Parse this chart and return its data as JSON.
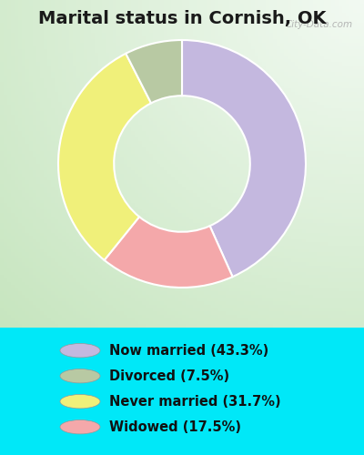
{
  "title": "Marital status in Cornish, OK",
  "values": [
    43.3,
    17.5,
    31.7,
    7.5
  ],
  "colors": [
    "#c4b8df",
    "#f4a8aa",
    "#f0f07a",
    "#b8c9a3"
  ],
  "startangle": 90,
  "legend_labels": [
    "Now married (43.3%)",
    "Divorced (7.5%)",
    "Never married (31.7%)",
    "Widowed (17.5%)"
  ],
  "legend_colors": [
    "#c4b8df",
    "#b8c9a3",
    "#f0f07a",
    "#f4a8aa"
  ],
  "bg_color_outer": "#00e8f8",
  "bg_color_chart": "#d6eedd",
  "watermark": "City-Data.com",
  "title_fontsize": 14,
  "legend_fontsize": 10.5,
  "donut_width": 0.45
}
